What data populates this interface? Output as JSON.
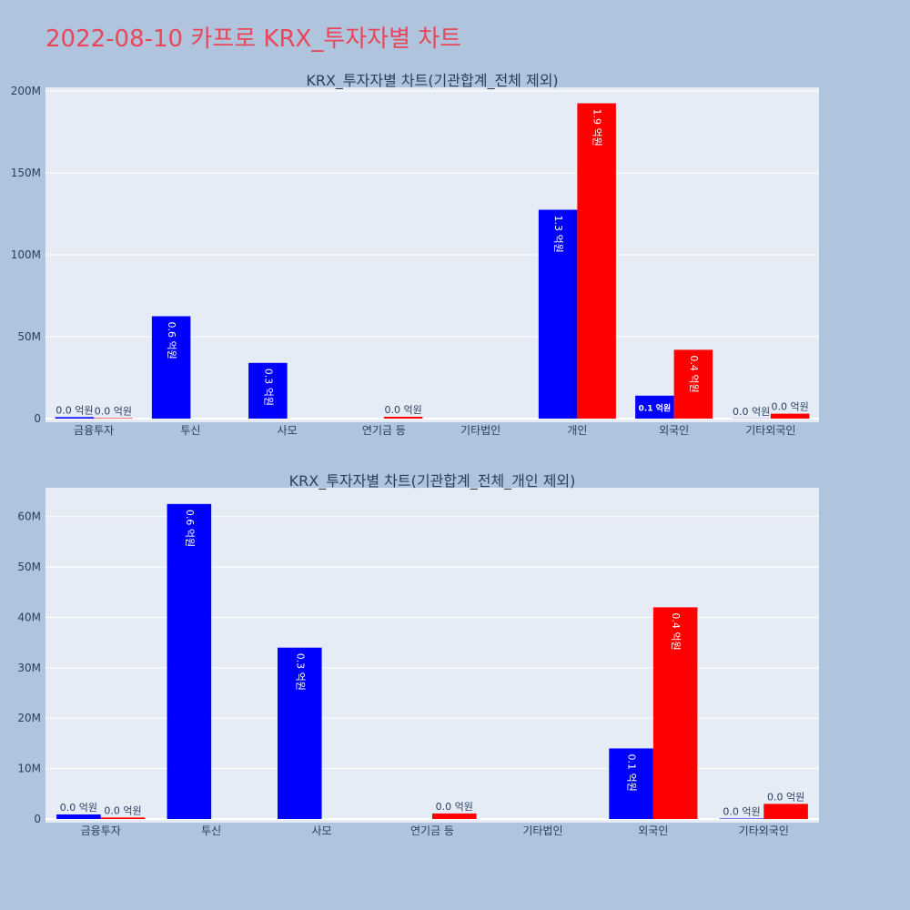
{
  "page": {
    "title": "2022-08-10 카프로 KRX_투자자별 차트"
  },
  "colors": {
    "buy": "#0000ff",
    "sell": "#ff0000",
    "plot_bg": "#e5ecf6",
    "page_bg": "#b0c4de",
    "title": "#e8475a",
    "text": "#2a3f5f",
    "grid": "#ffffff"
  },
  "chart_data": [
    {
      "type": "bar",
      "title": "KRX_투자자별 차트(기관합계_전체 제외)",
      "categories": [
        "금융투자",
        "투신",
        "사모",
        "연기금 등",
        "기타법인",
        "개인",
        "외국인",
        "기타외국인"
      ],
      "ylim": [
        0,
        200000000
      ],
      "yticks": [
        0,
        50000000,
        100000000,
        150000000,
        200000000
      ],
      "ytick_labels": [
        "0",
        "50M",
        "100M",
        "150M",
        "200M"
      ],
      "grid": true,
      "legend": "none",
      "series": [
        {
          "color": "#0000ff",
          "values": [
            900000,
            62500000,
            34000000,
            0,
            0,
            127500000,
            14000000,
            100000
          ],
          "labels": [
            "0.0 억원",
            "0.6 억원",
            "0.3 억원",
            "",
            "",
            "1.3 억원",
            "0.1 억원",
            "0.0 억원"
          ]
        },
        {
          "color": "#ff0000",
          "values": [
            300000,
            0,
            0,
            1100000,
            0,
            192500000,
            42000000,
            3000000
          ],
          "labels": [
            "0.0 억원",
            "",
            "",
            "0.0 억원",
            "",
            "1.9 억원",
            "0.4 억원",
            "0.0 억원"
          ]
        }
      ]
    },
    {
      "type": "bar",
      "title": "KRX_투자자별 차트(기관합계_전체_개인 제외)",
      "categories": [
        "금융투자",
        "투신",
        "사모",
        "연기금 등",
        "기타법인",
        "외국인",
        "기타외국인"
      ],
      "ylim": [
        0,
        65000000
      ],
      "yticks": [
        0,
        10000000,
        20000000,
        30000000,
        40000000,
        50000000,
        60000000
      ],
      "ytick_labels": [
        "0",
        "10M",
        "20M",
        "30M",
        "40M",
        "50M",
        "60M"
      ],
      "grid": true,
      "legend": "none",
      "series": [
        {
          "color": "#0000ff",
          "values": [
            900000,
            62500000,
            34000000,
            0,
            0,
            14000000,
            100000
          ],
          "labels": [
            "0.0 억원",
            "0.6 억원",
            "0.3 억원",
            "",
            "",
            "0.1 억원",
            "0.0 억원"
          ]
        },
        {
          "color": "#ff0000",
          "values": [
            300000,
            0,
            0,
            1100000,
            0,
            42000000,
            3000000
          ],
          "labels": [
            "0.0 억원",
            "",
            "",
            "0.0 억원",
            "",
            "0.4 억원",
            "0.0 억원"
          ]
        }
      ]
    }
  ]
}
